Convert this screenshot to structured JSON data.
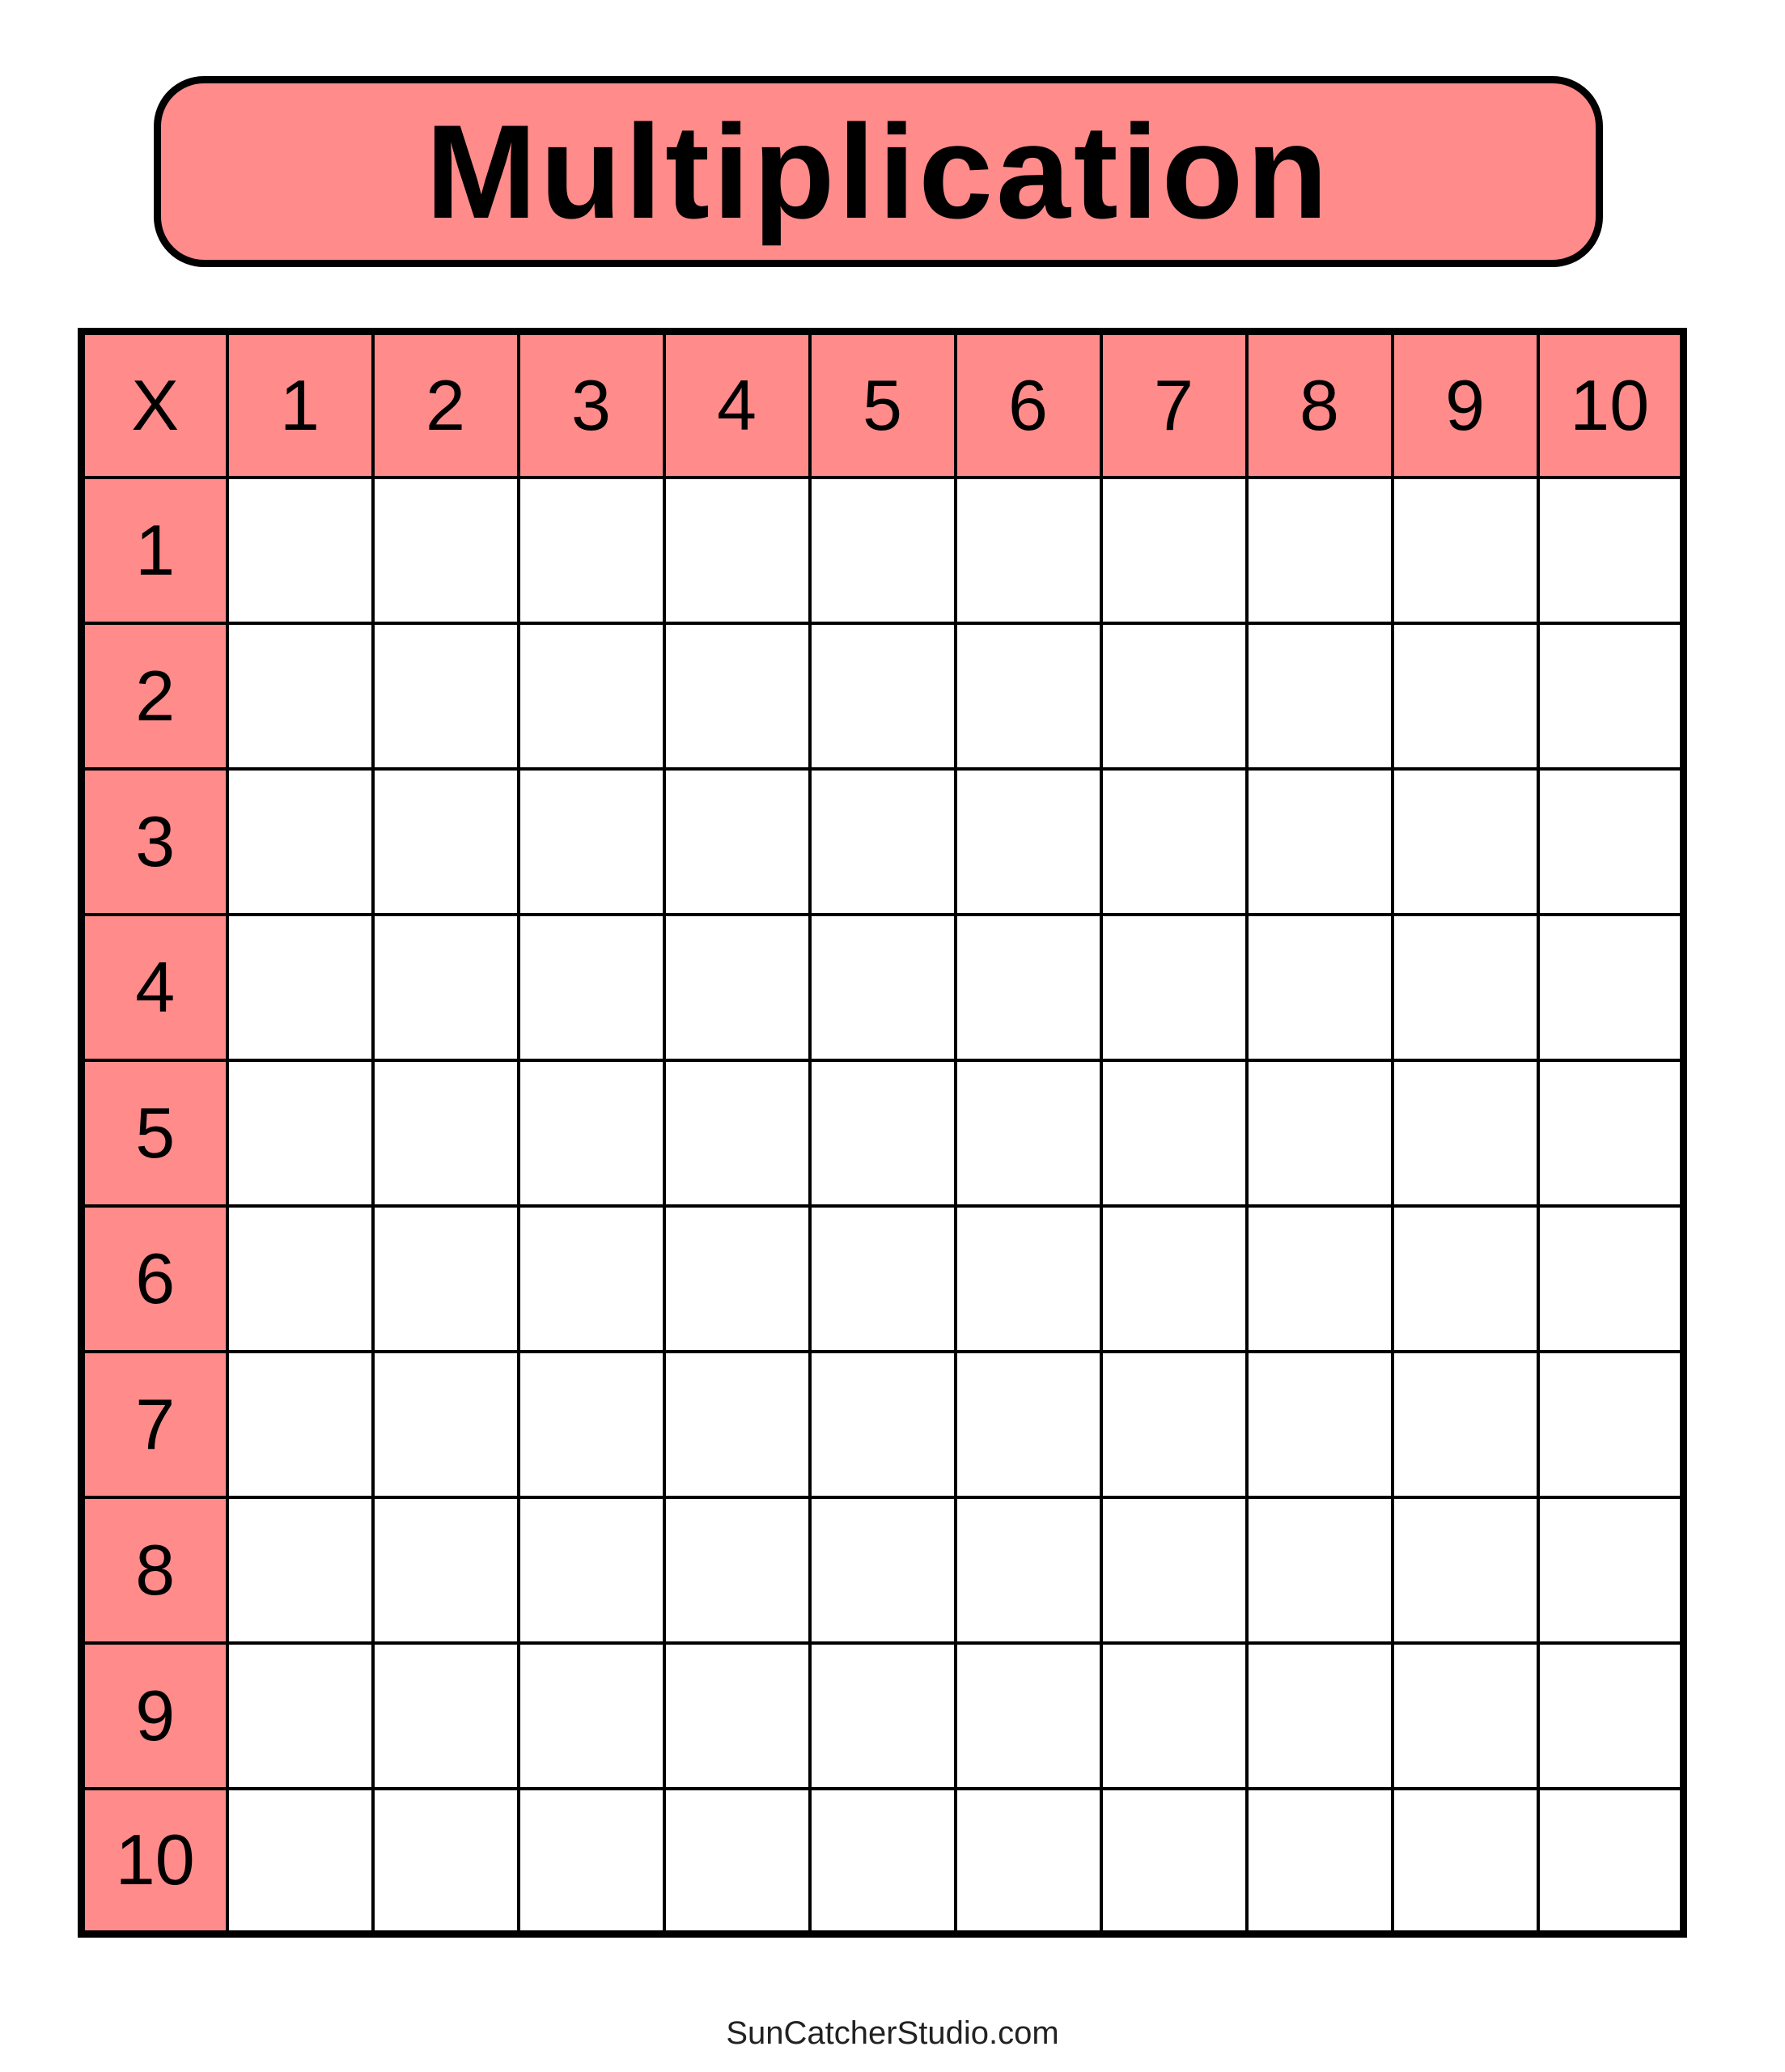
{
  "title": "Multiplication",
  "colors": {
    "header_fill": "#FF8B8B",
    "border": "#000000",
    "cell_fill": "#FFFFFF"
  },
  "table": {
    "corner": "X",
    "column_headers": [
      "1",
      "2",
      "3",
      "4",
      "5",
      "6",
      "7",
      "8",
      "9",
      "10"
    ],
    "row_headers": [
      "1",
      "2",
      "3",
      "4",
      "5",
      "6",
      "7",
      "8",
      "9",
      "10"
    ]
  },
  "footer": "SunCatcherStudio.com"
}
